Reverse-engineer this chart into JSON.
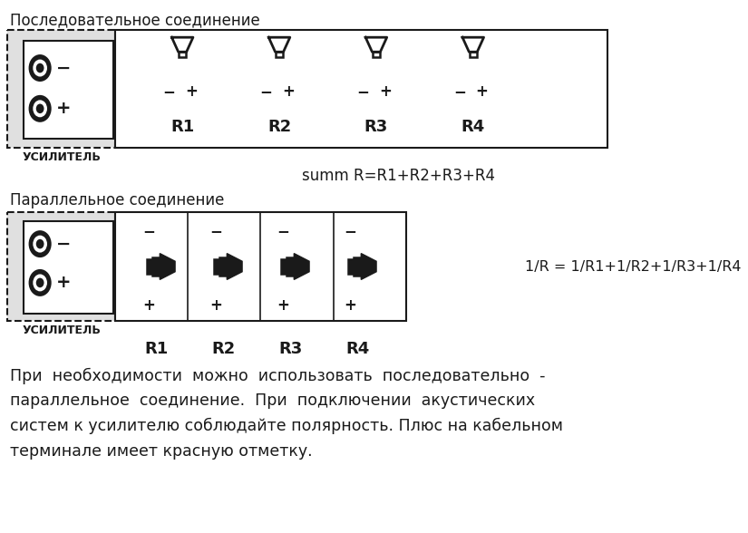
{
  "bg_color": "#ffffff",
  "fg_color": "#1a1a1a",
  "gray_bg": "#e0e0e0",
  "title1": "Последовательное соединение",
  "title2": "Параллельное соединение",
  "formula1": "summ R=R1+R2+R3+R4",
  "formula2": "1/R = 1/R1+1/R2+1/R3+1/R4",
  "amp_label": "УСИЛИТЕЛЬ",
  "r_labels": [
    "R1",
    "R2",
    "R3",
    "R4"
  ],
  "bottom_text": "При  необходимости  можно  использовать  последовательно  -\nпараллельное  соединение.  При  подключении  акустических\nсистем к усилителю соблюдайте полярность. Плюс на кабельном\nтерминале имеет красную отметку.",
  "fig_width": 8.25,
  "fig_height": 5.88,
  "dpi": 100
}
